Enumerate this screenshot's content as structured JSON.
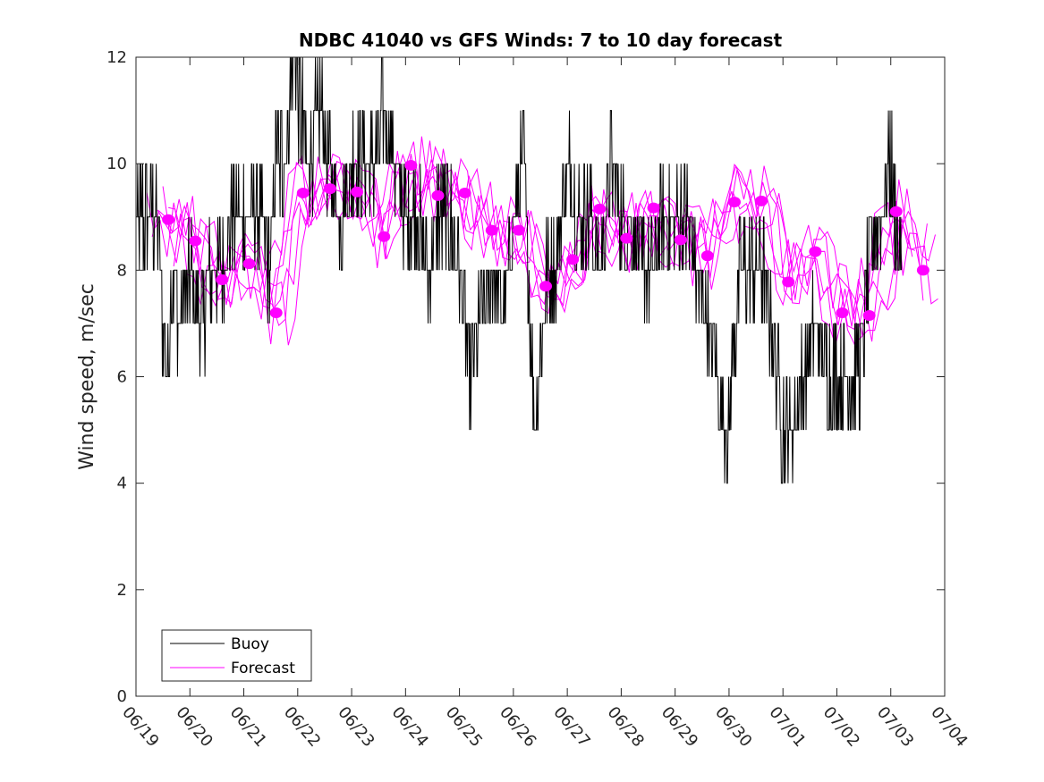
{
  "chart_data": {
    "type": "line",
    "title": "NDBC 41040 vs GFS Winds: 7 to 10 day forecast",
    "xlabel": "",
    "ylabel": "Wind speed, m/sec",
    "xlim": [
      "06/19",
      "07/04"
    ],
    "ylim": [
      0,
      12
    ],
    "yticks": [
      0,
      2,
      4,
      6,
      8,
      10,
      12
    ],
    "xtick_labels": [
      "06/19",
      "06/20",
      "06/21",
      "06/22",
      "06/23",
      "06/24",
      "06/25",
      "06/26",
      "06/27",
      "06/28",
      "06/29",
      "06/30",
      "07/01",
      "07/02",
      "07/03",
      "07/04"
    ],
    "grid": false,
    "legend_position": "bottom-left",
    "colors": {
      "buoy": "#000000",
      "forecast": "#ff00ff"
    },
    "series": [
      {
        "name": "Buoy",
        "color": "#000000",
        "x_days": [
          0.0,
          0.4,
          0.45,
          0.5,
          0.6,
          0.65,
          0.8,
          1.0,
          1.2,
          1.4,
          1.6,
          1.8,
          2.0,
          2.1,
          2.3,
          2.5,
          2.6,
          2.75,
          2.85,
          2.95,
          3.05,
          3.2,
          3.4,
          3.6,
          3.8,
          4.0,
          4.2,
          4.4,
          4.6,
          4.8,
          5.0,
          5.2,
          5.4,
          5.6,
          5.8,
          6.0,
          6.2,
          6.4,
          6.6,
          6.8,
          7.0,
          7.2,
          7.4,
          7.6,
          7.8,
          8.0,
          8.2,
          8.4,
          8.6,
          8.8,
          9.0,
          9.2,
          9.4,
          9.6,
          9.8,
          10.0,
          10.2,
          10.4,
          10.6,
          10.8,
          11.0,
          11.2,
          11.4,
          11.6,
          11.8,
          12.0,
          12.2,
          12.4,
          12.6,
          12.8,
          13.0,
          13.2,
          13.4,
          13.6,
          13.8,
          14.0,
          14.2
        ],
        "values": [
          9,
          9,
          8,
          7,
          6,
          8,
          7,
          8,
          7,
          8,
          8,
          9,
          9,
          9,
          9,
          8,
          10,
          10,
          11,
          12,
          11,
          10,
          11,
          10,
          9,
          10,
          10,
          10,
          11,
          10,
          9,
          9,
          8,
          9,
          9,
          8,
          6,
          7,
          8,
          7,
          9,
          10,
          5,
          8,
          8,
          10,
          9,
          9,
          8,
          10,
          9,
          9,
          8,
          8,
          9,
          9,
          9,
          8,
          7,
          6,
          5,
          8,
          8,
          8,
          7,
          5,
          5,
          6,
          7,
          6,
          6,
          6,
          6,
          8,
          9,
          10,
          8
        ]
      },
      {
        "name": "Forecast",
        "color": "#ff00ff",
        "x_days": [
          0.6,
          1.1,
          1.6,
          2.1,
          2.6,
          3.1,
          3.6,
          4.1,
          4.6,
          5.1,
          5.6,
          6.1,
          6.6,
          7.1,
          7.6,
          8.1,
          8.6,
          9.1,
          9.6,
          10.1,
          10.6,
          11.1,
          11.6,
          12.1,
          12.6,
          13.1,
          13.6,
          14.1,
          14.6
        ],
        "values": [
          8.95,
          8.55,
          7.82,
          8.12,
          7.2,
          9.45,
          9.53,
          9.47,
          8.63,
          9.97,
          9.4,
          9.45,
          8.75,
          8.75,
          7.7,
          8.2,
          9.15,
          8.6,
          9.17,
          8.57,
          8.27,
          9.28,
          9.3,
          7.78,
          8.35,
          7.2,
          7.15,
          9.1,
          8.0
        ]
      }
    ]
  }
}
